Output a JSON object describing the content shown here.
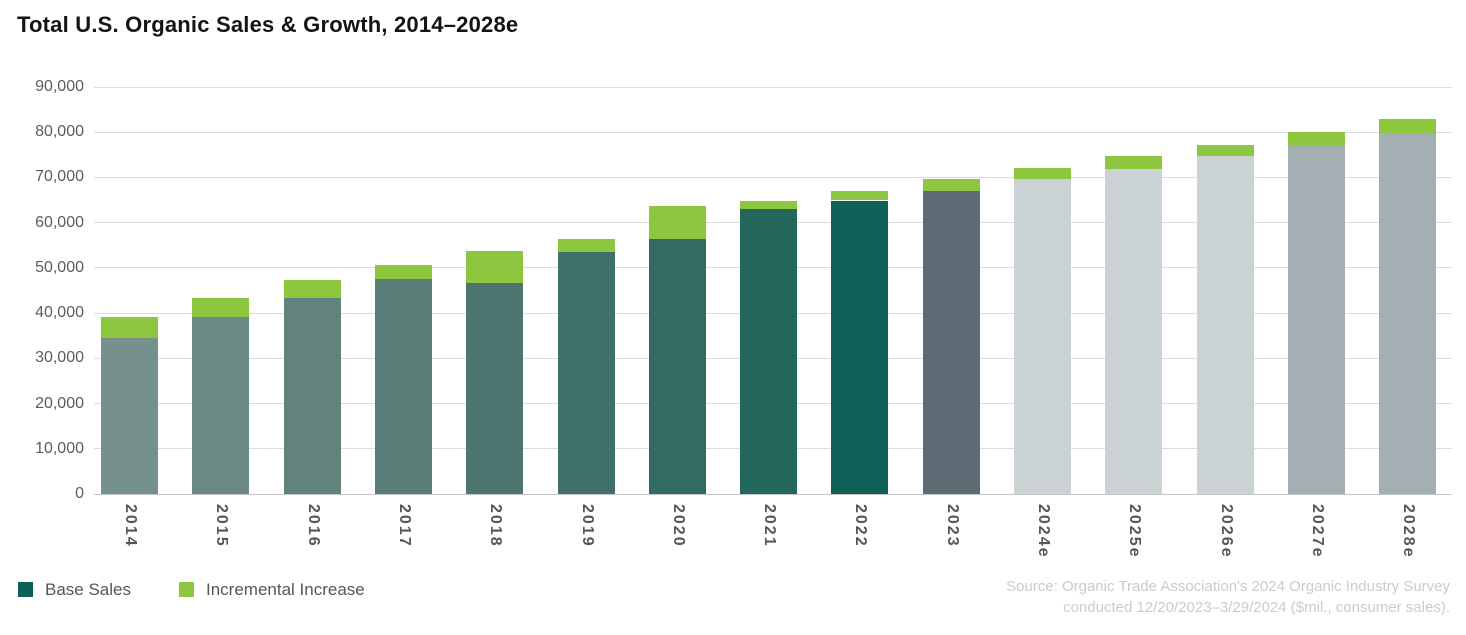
{
  "chart_data": {
    "type": "bar",
    "stacked": true,
    "title": "Total U.S. Organic Sales & Growth, 2014–2028e",
    "units": "$mil.",
    "categories": [
      "2014",
      "2015",
      "2016",
      "2017",
      "2018",
      "2019",
      "2020",
      "2021",
      "2022",
      "2023",
      "2024e",
      "2025e",
      "2026e",
      "2027e",
      "2028e"
    ],
    "series": [
      {
        "name": "Base Sales",
        "values": [
          34500,
          39100,
          43400,
          47600,
          46700,
          53600,
          56400,
          63100,
          64900,
          67000,
          69600,
          71900,
          74800,
          77100,
          79900
        ]
      },
      {
        "name": "Incremental Increase",
        "values": [
          4700,
          4300,
          4000,
          3100,
          7000,
          2800,
          7200,
          1800,
          2100,
          2600,
          2500,
          2900,
          2400,
          3000,
          3100
        ]
      }
    ],
    "totals": [
      39200,
      43400,
      47400,
      50700,
      53700,
      56400,
      63600,
      64900,
      67000,
      69600,
      72100,
      74800,
      77200,
      80100,
      83000
    ],
    "ylim": [
      0,
      90000
    ],
    "ytick_interval": 10000,
    "ytick_labels": [
      "0",
      "10,000",
      "20,000",
      "30,000",
      "40,000",
      "50,000",
      "60,000",
      "70,000",
      "80,000",
      "90,000"
    ],
    "grid": true,
    "legend_position": "bottom-left",
    "bar_base_colors": [
      "#76908d",
      "#6b8884",
      "#61827d",
      "#587d77",
      "#4e756f",
      "#3f716a",
      "#326b62",
      "#23665c",
      "#0e6157",
      "#5f6b74",
      "#cbd2d3",
      "#cbd2d3",
      "#cbd2d3",
      "#a4afb4",
      "#a4afb4"
    ],
    "incremental_color": "#8dc63f",
    "axis_label_color": "#55575a",
    "gridline_color": "#dbdcdc"
  },
  "legend": {
    "items": [
      {
        "label": "Base Sales",
        "color": "#0b5f58"
      },
      {
        "label": "Incremental Increase",
        "color": "#8dc63f"
      }
    ]
  },
  "source": {
    "line1": "Source: Organic Trade Association's 2024 Organic Industry Survey",
    "line2": "conducted 12/20/2023–3/29/2024 ($mil., consumer sales)."
  }
}
